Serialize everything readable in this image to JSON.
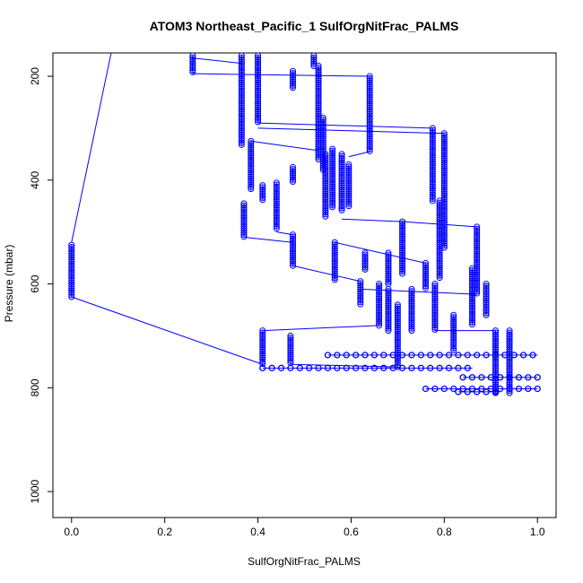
{
  "chart_data": {
    "type": "scatter",
    "title": "ATOM3 Northeast_Pacific_1 SulfOrgNitFrac_PALMS",
    "xlabel": "SulfOrgNitFrac_PALMS",
    "ylabel": "Pressure (mbar)",
    "xlim": [
      -0.04,
      1.04
    ],
    "ylim": [
      1050,
      155
    ],
    "y_reversed": true,
    "x_ticks": [
      "0.0",
      "0.2",
      "0.4",
      "0.6",
      "0.8",
      "1.0"
    ],
    "y_ticks": [
      "200",
      "400",
      "600",
      "800",
      "1000"
    ],
    "grid": false,
    "marker": "open-circle",
    "connect_points": true,
    "color": "#0000ff",
    "columns": [
      {
        "x": 0.0,
        "p_top": 525,
        "p_bottom": 625
      },
      {
        "x": 0.26,
        "p_top": 160,
        "p_bottom": 195
      },
      {
        "x": 0.365,
        "p_top": 160,
        "p_bottom": 335
      },
      {
        "x": 0.385,
        "p_top": 325,
        "p_bottom": 420
      },
      {
        "x": 0.4,
        "p_top": 160,
        "p_bottom": 290
      },
      {
        "x": 0.37,
        "p_top": 445,
        "p_bottom": 510
      },
      {
        "x": 0.41,
        "p_top": 410,
        "p_bottom": 440
      },
      {
        "x": 0.44,
        "p_top": 405,
        "p_bottom": 495
      },
      {
        "x": 0.41,
        "p_top": 690,
        "p_bottom": 755
      },
      {
        "x": 0.47,
        "p_top": 700,
        "p_bottom": 755
      },
      {
        "x": 0.475,
        "p_top": 505,
        "p_bottom": 565
      },
      {
        "x": 0.475,
        "p_top": 190,
        "p_bottom": 225
      },
      {
        "x": 0.475,
        "p_top": 375,
        "p_bottom": 405
      },
      {
        "x": 0.52,
        "p_top": 160,
        "p_bottom": 180
      },
      {
        "x": 0.53,
        "p_top": 180,
        "p_bottom": 360
      },
      {
        "x": 0.54,
        "p_top": 280,
        "p_bottom": 380
      },
      {
        "x": 0.545,
        "p_top": 350,
        "p_bottom": 470
      },
      {
        "x": 0.56,
        "p_top": 340,
        "p_bottom": 455
      },
      {
        "x": 0.565,
        "p_top": 520,
        "p_bottom": 595
      },
      {
        "x": 0.58,
        "p_top": 350,
        "p_bottom": 460
      },
      {
        "x": 0.595,
        "p_top": 370,
        "p_bottom": 450
      },
      {
        "x": 0.62,
        "p_top": 595,
        "p_bottom": 640
      },
      {
        "x": 0.63,
        "p_top": 540,
        "p_bottom": 575
      },
      {
        "x": 0.64,
        "p_top": 200,
        "p_bottom": 345
      },
      {
        "x": 0.66,
        "p_top": 600,
        "p_bottom": 680
      },
      {
        "x": 0.68,
        "p_top": 540,
        "p_bottom": 600
      },
      {
        "x": 0.68,
        "p_top": 610,
        "p_bottom": 690
      },
      {
        "x": 0.7,
        "p_top": 640,
        "p_bottom": 760
      },
      {
        "x": 0.71,
        "p_top": 480,
        "p_bottom": 580
      },
      {
        "x": 0.73,
        "p_top": 610,
        "p_bottom": 690
      },
      {
        "x": 0.76,
        "p_top": 560,
        "p_bottom": 610
      },
      {
        "x": 0.775,
        "p_top": 300,
        "p_bottom": 440
      },
      {
        "x": 0.78,
        "p_top": 600,
        "p_bottom": 690
      },
      {
        "x": 0.79,
        "p_top": 440,
        "p_bottom": 590
      },
      {
        "x": 0.8,
        "p_top": 310,
        "p_bottom": 530
      },
      {
        "x": 0.82,
        "p_top": 660,
        "p_bottom": 730
      },
      {
        "x": 0.86,
        "p_top": 570,
        "p_bottom": 680
      },
      {
        "x": 0.87,
        "p_top": 490,
        "p_bottom": 620
      },
      {
        "x": 0.89,
        "p_top": 600,
        "p_bottom": 660
      },
      {
        "x": 0.91,
        "p_top": 690,
        "p_bottom": 810
      },
      {
        "x": 0.94,
        "p_top": 690,
        "p_bottom": 810
      }
    ],
    "rows": [
      {
        "p": 737,
        "x_from": 0.55,
        "x_to": 1.0
      },
      {
        "p": 762,
        "x_from": 0.41,
        "x_to": 0.86
      },
      {
        "p": 780,
        "x_from": 0.84,
        "x_to": 1.0
      },
      {
        "p": 802,
        "x_from": 0.76,
        "x_to": 1.0
      },
      {
        "p": 808,
        "x_from": 0.83,
        "x_to": 0.92
      }
    ],
    "links": [
      [
        0.0,
        625,
        0.41,
        755
      ],
      [
        0.0,
        520,
        0.085,
        155
      ],
      [
        0.26,
        165,
        0.365,
        175
      ],
      [
        0.26,
        195,
        0.64,
        200
      ],
      [
        0.4,
        290,
        0.775,
        300
      ],
      [
        0.4,
        300,
        0.8,
        310
      ],
      [
        0.385,
        325,
        0.545,
        345
      ],
      [
        0.44,
        500,
        0.475,
        505
      ],
      [
        0.37,
        510,
        0.475,
        520
      ],
      [
        0.475,
        565,
        0.62,
        595
      ],
      [
        0.62,
        610,
        0.87,
        620
      ],
      [
        0.41,
        690,
        0.66,
        680
      ],
      [
        0.47,
        755,
        0.7,
        760
      ],
      [
        0.58,
        475,
        0.71,
        480
      ],
      [
        0.71,
        480,
        0.87,
        490
      ],
      [
        0.565,
        520,
        0.76,
        560
      ],
      [
        0.78,
        690,
        0.91,
        690
      ],
      [
        0.64,
        345,
        0.595,
        355
      ]
    ]
  }
}
